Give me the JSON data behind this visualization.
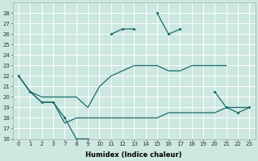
{
  "xlabel": "Humidex (Indice chaleur)",
  "background_color": "#cce8e0",
  "grid_color": "#ffffff",
  "line_color": "#1a6b6b",
  "ylim": [
    16,
    29
  ],
  "hours": [
    0,
    1,
    2,
    3,
    7,
    8,
    9,
    10,
    11,
    12,
    13,
    14,
    15,
    16,
    17,
    18,
    19,
    20,
    21,
    22,
    23
  ],
  "series1_y": [
    22,
    20.5,
    19.5,
    19.5,
    18,
    16,
    16,
    null,
    26,
    26.5,
    26.5,
    null,
    28,
    26,
    26.5,
    null,
    null,
    20.5,
    19,
    18.5,
    19
  ],
  "series2_y": [
    22,
    20.5,
    19.5,
    19.5,
    17.5,
    18,
    18,
    18,
    18,
    18,
    18,
    18,
    18,
    18.5,
    18.5,
    18.5,
    18.5,
    18.5,
    19,
    19,
    19
  ],
  "series3_y": [
    22,
    20.5,
    20,
    20,
    20,
    20,
    19,
    21,
    22,
    22.5,
    23,
    23,
    23,
    22.5,
    22.5,
    23,
    23,
    23,
    23,
    null,
    null
  ]
}
